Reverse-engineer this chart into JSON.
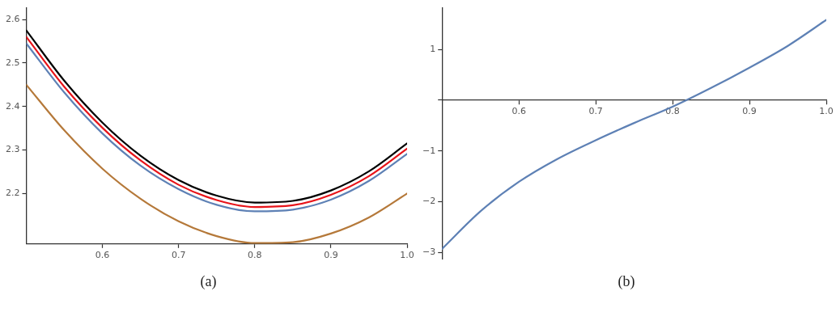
{
  "chart_data": [
    {
      "type": "line",
      "xlabel": "(a)",
      "x": [
        0.5,
        0.55,
        0.6,
        0.65,
        0.7,
        0.75,
        0.8,
        0.85,
        0.9,
        0.95,
        1.0
      ],
      "series": [
        {
          "color": "#000000",
          "values": [
            2.575,
            2.459,
            2.363,
            2.287,
            2.231,
            2.195,
            2.179,
            2.183,
            2.207,
            2.251,
            2.315
          ]
        },
        {
          "color": "#e8141a",
          "values": [
            2.56,
            2.445,
            2.351,
            2.276,
            2.22,
            2.185,
            2.169,
            2.173,
            2.197,
            2.24,
            2.303
          ]
        },
        {
          "color": "#5e81b5",
          "values": [
            2.545,
            2.432,
            2.338,
            2.264,
            2.21,
            2.174,
            2.159,
            2.163,
            2.186,
            2.229,
            2.291
          ]
        },
        {
          "color": "#b5793a",
          "values": [
            2.45,
            2.345,
            2.257,
            2.188,
            2.136,
            2.102,
            2.086,
            2.088,
            2.108,
            2.145,
            2.2
          ]
        }
      ],
      "xlim": [
        0.5,
        1.0
      ],
      "ylim": [
        2.084,
        2.627
      ],
      "xticks": [
        0.6,
        0.7,
        0.8,
        0.9,
        {
          "value": 1.0,
          "label": "1.0"
        }
      ],
      "yticks": [
        2.2,
        2.3,
        2.4,
        2.5,
        2.6
      ],
      "grid": false,
      "legend": false,
      "marker": "none",
      "line_style": "solid"
    },
    {
      "type": "line",
      "xlabel": "(b)",
      "x": [
        0.5,
        0.55,
        0.6,
        0.65,
        0.7,
        0.75,
        0.8,
        0.85,
        0.9,
        0.95,
        1.0
      ],
      "series": [
        {
          "color": "#5e81b5",
          "values": [
            -2.93,
            -2.19,
            -1.61,
            -1.16,
            -0.79,
            -0.45,
            -0.13,
            0.24,
            0.64,
            1.07,
            1.58
          ]
        }
      ],
      "xlim": [
        0.5,
        1.0
      ],
      "ylim": [
        -3.13,
        1.82
      ],
      "xticks": [
        0.6,
        0.7,
        0.8,
        0.9,
        {
          "value": 1.0,
          "label": "1.0"
        }
      ],
      "yticks": [
        {
          "value": -3,
          "label": "−3"
        },
        {
          "value": -2,
          "label": "−2"
        },
        {
          "value": -1,
          "label": "−1"
        },
        {
          "value": 0,
          "label": null
        },
        1
      ],
      "grid": false,
      "legend": false,
      "marker": "none",
      "line_style": "solid"
    }
  ]
}
